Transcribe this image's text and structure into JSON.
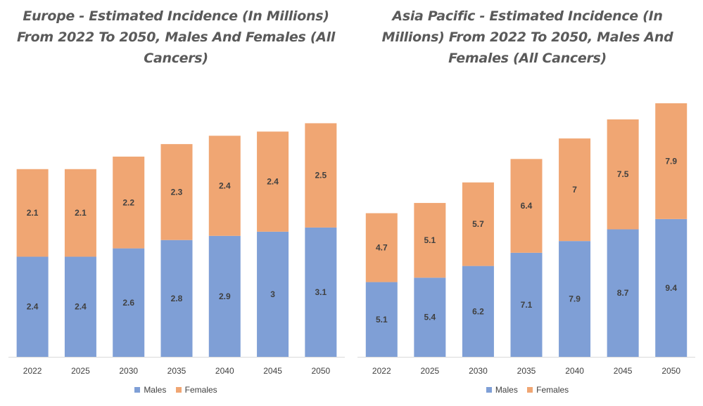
{
  "chart_data": [
    {
      "type": "bar",
      "stacked": true,
      "title": "Europe - Estimated Incidence (In Millions) From 2022 To 2050, Males And Females (All Cancers)",
      "categories": [
        "2022",
        "2025",
        "2030",
        "2035",
        "2040",
        "2045",
        "2050"
      ],
      "series": [
        {
          "name": "Males",
          "color": "#7f9fd6",
          "values": [
            2.4,
            2.4,
            2.6,
            2.8,
            2.9,
            3,
            3.1
          ]
        },
        {
          "name": "Females",
          "color": "#f0a673",
          "values": [
            2.1,
            2.1,
            2.2,
            2.3,
            2.4,
            2.4,
            2.5
          ]
        }
      ],
      "ylim": [
        0,
        6.5
      ],
      "legend": "bottom",
      "grid": false
    },
    {
      "type": "bar",
      "stacked": true,
      "title": "Asia Pacific - Estimated Incidence (In Millions) From 2022 To 2050, Males And Females (All Cancers)",
      "categories": [
        "2022",
        "2025",
        "2030",
        "2035",
        "2040",
        "2045",
        "2050"
      ],
      "series": [
        {
          "name": "Males",
          "color": "#7f9fd6",
          "values": [
            5.1,
            5.4,
            6.2,
            7.1,
            7.9,
            8.7,
            9.4
          ]
        },
        {
          "name": "Females",
          "color": "#f0a673",
          "values": [
            4.7,
            5.1,
            5.7,
            6.4,
            7,
            7.5,
            7.9
          ]
        }
      ],
      "ylim": [
        0,
        18.5
      ],
      "legend": "bottom",
      "grid": false
    }
  ]
}
